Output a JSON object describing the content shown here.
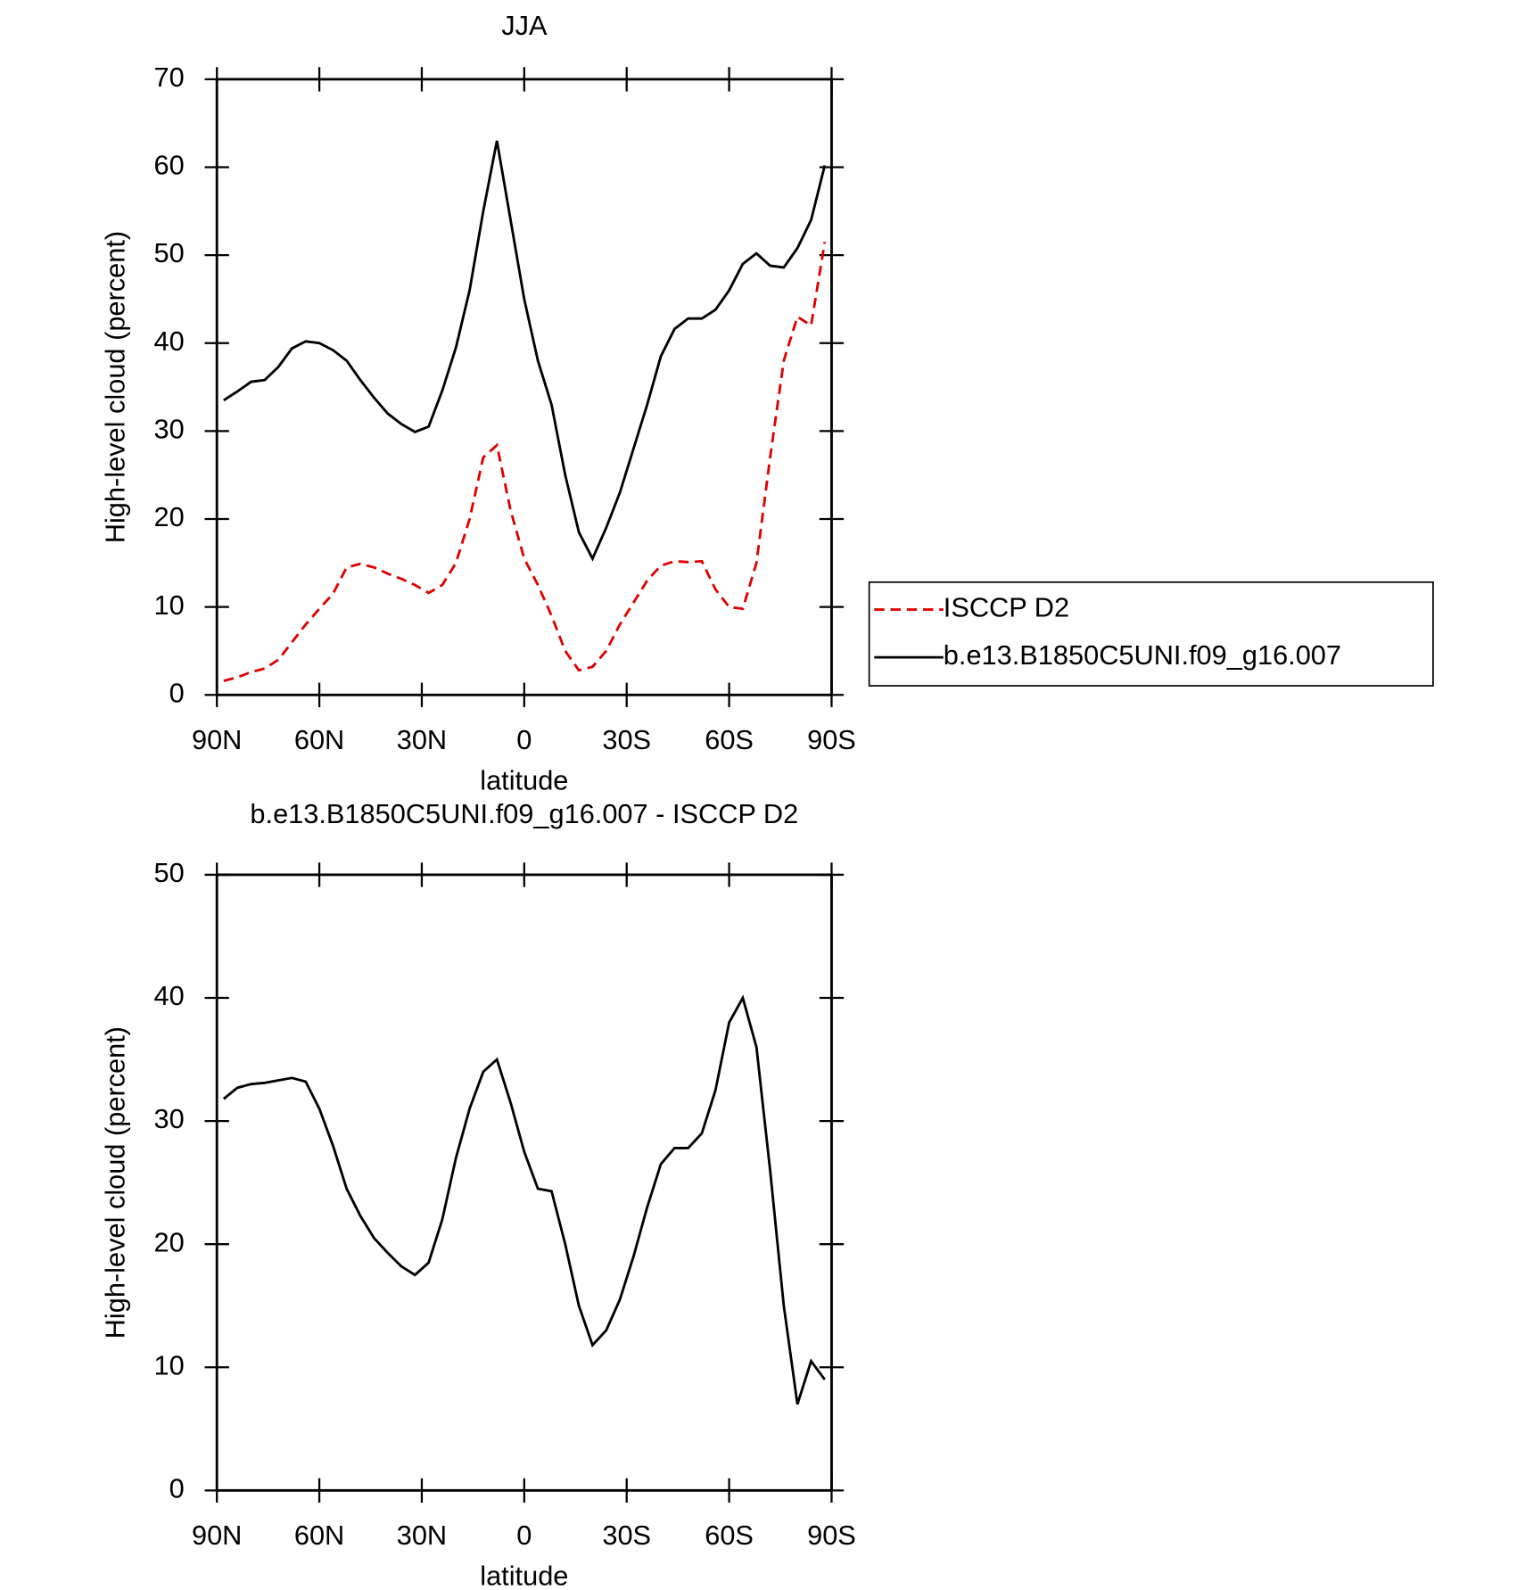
{
  "chart_data": [
    {
      "type": "line",
      "title": "JJA",
      "xlabel": "latitude",
      "ylabel": "High-level cloud (percent)",
      "xlim": [
        90,
        -90
      ],
      "xticks": [
        {
          "value": 90,
          "label": "90N"
        },
        {
          "value": 60,
          "label": "60N"
        },
        {
          "value": 30,
          "label": "30N"
        },
        0,
        {
          "value": -30,
          "label": "30S"
        },
        {
          "value": -60,
          "label": "60S"
        },
        {
          "value": -90,
          "label": "90S"
        }
      ],
      "ylim": [
        0,
        70
      ],
      "yticks": [
        0,
        10,
        20,
        30,
        40,
        50,
        60,
        70
      ],
      "legend": "right",
      "x": [
        88,
        84,
        80,
        76,
        72,
        68,
        64,
        60,
        56,
        52,
        48,
        44,
        40,
        36,
        32,
        28,
        24,
        20,
        16,
        12,
        8,
        4,
        0,
        -4,
        -8,
        -12,
        -16,
        -20,
        -24,
        -28,
        -32,
        -36,
        -40,
        -44,
        -48,
        -52,
        -56,
        -60,
        -64,
        -68,
        -72,
        -76,
        -80,
        -84,
        -88
      ],
      "series": [
        {
          "name": "ISCCP D2",
          "color": "#e00000",
          "style": "dashed",
          "values": [
            1.6,
            2,
            2.6,
            3,
            4,
            6,
            8,
            9.8,
            11.5,
            14.5,
            14.9,
            14.5,
            13.8,
            13.2,
            12.5,
            11.6,
            12.5,
            15,
            20,
            27,
            28.4,
            21,
            15.5,
            12.5,
            9,
            5,
            2.8,
            3.2,
            5,
            8,
            10.5,
            13,
            14.7,
            15.2,
            15.1,
            15.2,
            12,
            10,
            9.8,
            15,
            27,
            38,
            43,
            42,
            51.5
          ]
        },
        {
          "name": "b.e13.B1850C5UNI.f09_g16.007",
          "color": "#000000",
          "style": "solid",
          "values": [
            33.5,
            34.5,
            35.6,
            35.8,
            37.3,
            39.4,
            40.2,
            40,
            39.2,
            38,
            35.8,
            33.8,
            32,
            30.8,
            29.9,
            30.5,
            34.6,
            39.5,
            46,
            55,
            63,
            54,
            45,
            38,
            33,
            25,
            18.5,
            15.5,
            19,
            23,
            28,
            33,
            38.5,
            41.6,
            42.8,
            42.8,
            43.8,
            46,
            49,
            50.2,
            48.8,
            48.6,
            50.8,
            54,
            60.2
          ]
        }
      ]
    },
    {
      "type": "line",
      "title": "b.e13.B1850C5UNI.f09_g16.007 - ISCCP D2",
      "xlabel": "latitude",
      "ylabel": "High-level cloud (percent)",
      "xlim": [
        90,
        -90
      ],
      "xticks": [
        {
          "value": 90,
          "label": "90N"
        },
        {
          "value": 60,
          "label": "60N"
        },
        {
          "value": 30,
          "label": "30N"
        },
        0,
        {
          "value": -30,
          "label": "30S"
        },
        {
          "value": -60,
          "label": "60S"
        },
        {
          "value": -90,
          "label": "90S"
        }
      ],
      "ylim": [
        0,
        50
      ],
      "yticks": [
        0,
        10,
        20,
        30,
        40,
        50
      ],
      "x": [
        88,
        84,
        80,
        76,
        72,
        68,
        64,
        60,
        56,
        52,
        48,
        44,
        40,
        36,
        32,
        28,
        24,
        20,
        16,
        12,
        8,
        4,
        0,
        -4,
        -8,
        -12,
        -16,
        -20,
        -24,
        -28,
        -32,
        -36,
        -40,
        -44,
        -48,
        -52,
        -56,
        -60,
        -64,
        -68,
        -72,
        -76,
        -80,
        -84,
        -88
      ],
      "series": [
        {
          "color": "#000000",
          "style": "solid",
          "values": [
            31.8,
            32.7,
            33,
            33.1,
            33.3,
            33.5,
            33.2,
            31,
            28,
            24.5,
            22.3,
            20.5,
            19.3,
            18.2,
            17.5,
            18.5,
            22,
            27,
            31,
            34,
            35,
            31.5,
            27.5,
            24.5,
            24.3,
            20,
            15,
            11.8,
            13,
            15.5,
            19,
            23,
            26.5,
            27.8,
            27.8,
            29,
            32.5,
            38,
            40,
            36,
            26,
            15,
            7,
            10.5,
            9
          ]
        }
      ]
    }
  ]
}
